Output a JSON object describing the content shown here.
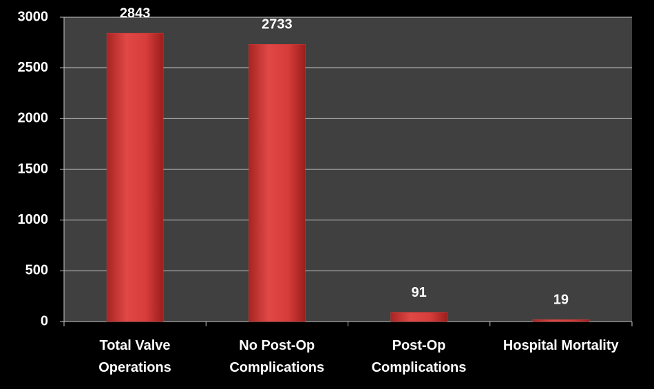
{
  "chart_data": {
    "type": "bar",
    "categories": [
      "Total Valve Operations",
      "No Post-Op Complications",
      "Post-Op Complications",
      "Hospital Mortality"
    ],
    "values": [
      2843,
      2733,
      91,
      19
    ],
    "color": "#d63c3a",
    "ylim": [
      0,
      3000
    ],
    "yticks": [
      0,
      500,
      1000,
      1500,
      2000,
      2500,
      3000
    ],
    "grid": true
  }
}
